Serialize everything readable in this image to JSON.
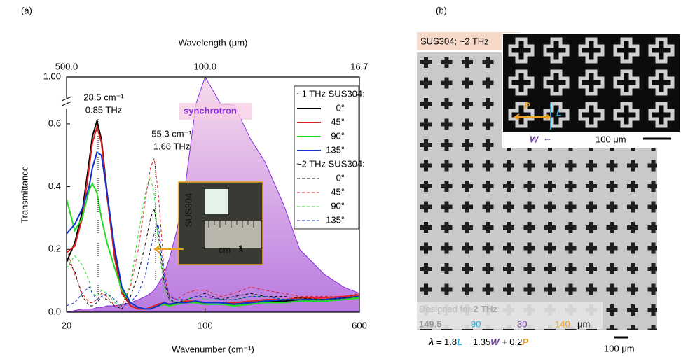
{
  "chart_data": {
    "type": "line",
    "panel_label": "(a)",
    "x_label": "Wavenumber (cm⁻¹)",
    "x2_label": "Wavelength (μm)",
    "y_label": "Transmittance",
    "xscale": "log",
    "xlim": [
      20,
      600
    ],
    "xticks": [
      20,
      100,
      600
    ],
    "x2lim": [
      500,
      16.7
    ],
    "x2ticks": [
      {
        "value": 500,
        "label": "500.0"
      },
      {
        "value": 100,
        "label": "100.0"
      },
      16.7
    ],
    "ylim": [
      0,
      1
    ],
    "ybreak": [
      0.66,
      0.95
    ],
    "yticks": [
      {
        "value": 0,
        "label": "0.0"
      },
      0.2,
      0.4,
      0.6,
      {
        "value": 1,
        "label": "1.00"
      }
    ],
    "legend": "upper right",
    "x": [
      20,
      22,
      24,
      26,
      27,
      28.5,
      30,
      32,
      35,
      38,
      42,
      46,
      50,
      53,
      55.3,
      58,
      62,
      66,
      72,
      80,
      90,
      100,
      120,
      140,
      170,
      200,
      250,
      300,
      400,
      500,
      600
    ],
    "area": {
      "name": "synchrotron",
      "color": "#8a2be2",
      "values": [
        0.0,
        0.005,
        0.01,
        0.01,
        0.01,
        0.015,
        0.015,
        0.02,
        0.02,
        0.025,
        0.03,
        0.04,
        0.05,
        0.06,
        0.07,
        0.09,
        0.12,
        0.17,
        0.26,
        0.42,
        0.7,
        1.0,
        0.68,
        0.66,
        0.55,
        0.48,
        0.34,
        0.2,
        0.12,
        0.08,
        0.06
      ]
    },
    "series_groups": [
      {
        "name": "~1 THz SUS304:",
        "style": "solid",
        "series": [
          {
            "name": "0°",
            "color": "#000000",
            "values": [
              0.16,
              0.22,
              0.32,
              0.48,
              0.56,
              0.61,
              0.55,
              0.38,
              0.18,
              0.07,
              0.02,
              0.01,
              0.01,
              0.01,
              0.015,
              0.02,
              0.03,
              0.02,
              0.03,
              0.03,
              0.03,
              0.03,
              0.03,
              0.025,
              0.03,
              0.035,
              0.035,
              0.04,
              0.04,
              0.045,
              0.05
            ]
          },
          {
            "name": "45°",
            "color": "#e02020",
            "values": [
              0.19,
              0.21,
              0.3,
              0.46,
              0.54,
              0.59,
              0.54,
              0.37,
              0.17,
              0.06,
              0.02,
              0.01,
              0.01,
              0.015,
              0.02,
              0.025,
              0.03,
              0.025,
              0.03,
              0.035,
              0.035,
              0.03,
              0.03,
              0.03,
              0.035,
              0.04,
              0.04,
              0.045,
              0.045,
              0.05,
              0.055
            ]
          },
          {
            "name": "90°",
            "color": "#22dd22",
            "values": [
              0.36,
              0.26,
              0.3,
              0.39,
              0.41,
              0.38,
              0.3,
              0.22,
              0.14,
              0.07,
              0.03,
              0.015,
              0.01,
              0.01,
              0.015,
              0.02,
              0.025,
              0.02,
              0.025,
              0.03,
              0.03,
              0.025,
              0.025,
              0.02,
              0.025,
              0.03,
              0.03,
              0.035,
              0.035,
              0.04,
              0.045
            ]
          },
          {
            "name": "135°",
            "color": "#1030d0",
            "values": [
              0.25,
              0.28,
              0.33,
              0.4,
              0.46,
              0.51,
              0.5,
              0.38,
              0.2,
              0.08,
              0.03,
              0.015,
              0.01,
              0.01,
              0.015,
              0.02,
              0.03,
              0.025,
              0.03,
              0.03,
              0.035,
              0.03,
              0.03,
              0.025,
              0.03,
              0.035,
              0.04,
              0.04,
              0.04,
              0.045,
              0.05
            ]
          }
        ]
      },
      {
        "name": "~2 THz SUS304:",
        "style": "dashed",
        "series": [
          {
            "name": "0°",
            "color": "#000000",
            "values": [
              0.17,
              0.13,
              0.05,
              0.02,
              0.02,
              0.03,
              0.05,
              0.04,
              0.02,
              0.01,
              0.05,
              0.12,
              0.22,
              0.3,
              0.33,
              0.25,
              0.1,
              0.04,
              0.03,
              0.04,
              0.05,
              0.06,
              0.04,
              0.05,
              0.06,
              0.05,
              0.05,
              0.045,
              0.04,
              0.045,
              0.05
            ]
          },
          {
            "name": "45°",
            "color": "#e02020",
            "values": [
              0.2,
              0.12,
              0.06,
              0.03,
              0.03,
              0.04,
              0.06,
              0.05,
              0.02,
              0.02,
              0.08,
              0.2,
              0.36,
              0.46,
              0.49,
              0.38,
              0.14,
              0.05,
              0.04,
              0.06,
              0.07,
              0.07,
              0.05,
              0.06,
              0.08,
              0.07,
              0.06,
              0.05,
              0.05,
              0.05,
              0.06
            ]
          },
          {
            "name": "90°",
            "color": "#22dd22",
            "values": [
              0.14,
              0.18,
              0.15,
              0.1,
              0.06,
              0.05,
              0.07,
              0.06,
              0.03,
              0.02,
              0.09,
              0.25,
              0.38,
              0.43,
              0.38,
              0.22,
              0.08,
              0.04,
              0.03,
              0.04,
              0.05,
              0.04,
              0.04,
              0.04,
              0.05,
              0.05,
              0.04,
              0.04,
              0.04,
              0.04,
              0.05
            ]
          },
          {
            "name": "135°",
            "color": "#1030d0",
            "values": [
              0.02,
              0.03,
              0.06,
              0.08,
              0.06,
              0.04,
              0.05,
              0.06,
              0.04,
              0.02,
              0.03,
              0.06,
              0.12,
              0.2,
              0.25,
              0.28,
              0.12,
              0.05,
              0.04,
              0.04,
              0.05,
              0.05,
              0.04,
              0.04,
              0.05,
              0.05,
              0.04,
              0.04,
              0.04,
              0.045,
              0.05
            ]
          }
        ]
      }
    ],
    "annotations": [
      [
        "28.5 cm⁻¹",
        "0.85 THz"
      ],
      [
        "55.3 cm⁻¹",
        "1.66 THz"
      ]
    ],
    "inset": {
      "sample": "SUS304",
      "unit": "cm",
      "tick": "1"
    }
  },
  "panel_b": {
    "panel_label": "(b)",
    "image_label": "SUS304; ~2 THz",
    "inset": {
      "p": "P",
      "l": "L",
      "w": "W",
      "arrow": "↔",
      "scale": "100 μm"
    },
    "design": {
      "title": "Designed for",
      "title_bold": "2 THz",
      "colon": ":",
      "values": [
        149.5,
        90,
        30,
        140
      ],
      "unit": "μm"
    },
    "formula": [
      "λ",
      " = 1.8",
      "L",
      " − 1.35",
      "W",
      " + 0.2",
      "P"
    ],
    "scale": "100 μm"
  }
}
